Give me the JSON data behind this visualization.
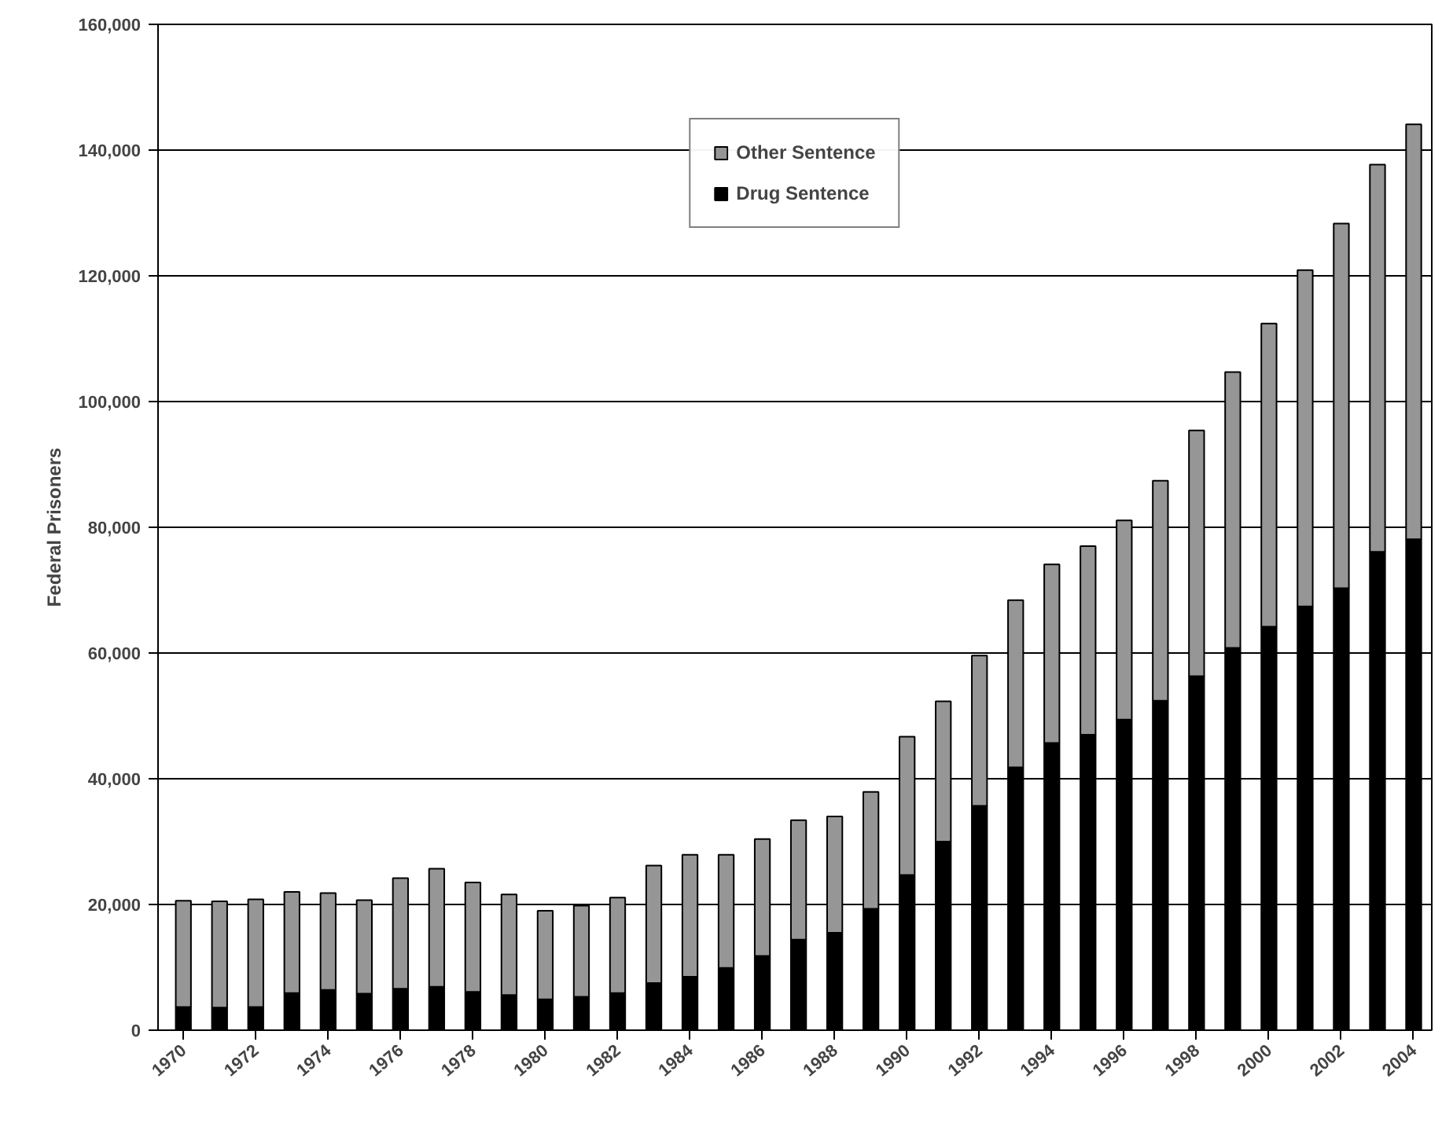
{
  "chart_data": {
    "type": "bar",
    "stacked": true,
    "ylabel": "Federal Prisoners",
    "categories": [
      "1970",
      null,
      "1972",
      null,
      "1974",
      null,
      "1976",
      null,
      "1978",
      null,
      "1980",
      null,
      "1982",
      null,
      "1984",
      null,
      "1986",
      null,
      "1988",
      null,
      "1990",
      null,
      "1992",
      null,
      "1994",
      null,
      "1996",
      null,
      "1998",
      null,
      "2000",
      null,
      "2002",
      null,
      "2004"
    ],
    "series": [
      {
        "name": "Drug Sentence",
        "color": "#000000",
        "values": [
          3700,
          3600,
          3700,
          5900,
          6400,
          5800,
          6600,
          6900,
          6100,
          5600,
          4900,
          5300,
          5900,
          7500,
          8500,
          9900,
          11800,
          14400,
          15500,
          19300,
          24700,
          30000,
          35700,
          41800,
          45700,
          47000,
          49400,
          52400,
          56300,
          60800,
          64200,
          67400,
          70300,
          76100,
          78100
        ]
      },
      {
        "name": "Other Sentence",
        "color": "#969696",
        "values": [
          16900,
          16900,
          17100,
          16100,
          15400,
          14900,
          17600,
          18800,
          17400,
          16000,
          14100,
          14500,
          15200,
          18700,
          19400,
          18000,
          18600,
          19000,
          18500,
          18600,
          22000,
          22300,
          23900,
          26600,
          28400,
          30000,
          31700,
          35000,
          39100,
          43900,
          48200,
          53500,
          58000,
          61600,
          66000
        ]
      }
    ],
    "ylim": [
      0,
      160000
    ],
    "yticks": [
      {
        "value": 0,
        "label": "0"
      },
      {
        "value": 20000,
        "label": "20,000"
      },
      {
        "value": 40000,
        "label": "40,000"
      },
      {
        "value": 60000,
        "label": "60,000"
      },
      {
        "value": 80000,
        "label": "80,000"
      },
      {
        "value": 100000,
        "label": "100,000"
      },
      {
        "value": 120000,
        "label": "120,000"
      },
      {
        "value": 140000,
        "label": "140,000"
      },
      {
        "value": 160000,
        "label": "160,000"
      }
    ],
    "grid": "y",
    "legend": "top"
  }
}
